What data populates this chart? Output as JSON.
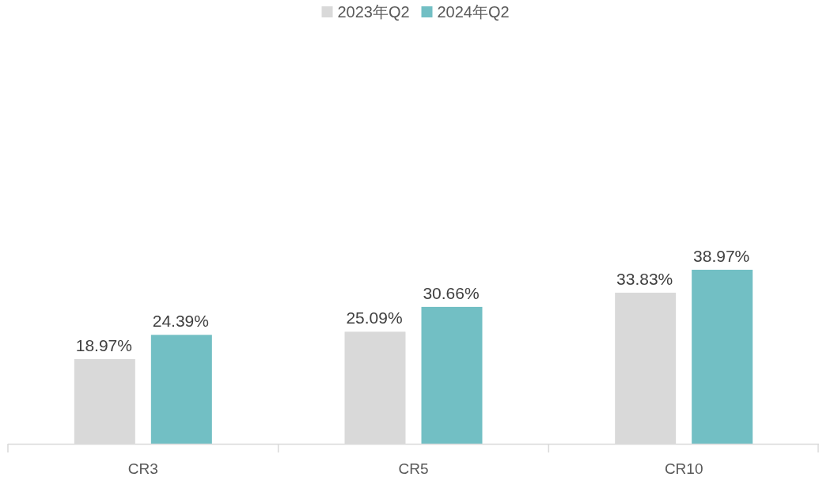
{
  "chart_data": {
    "type": "bar",
    "categories": [
      "CR3",
      "CR5",
      "CR10"
    ],
    "series": [
      {
        "name": "2023年Q2",
        "color": "#d9d9d9",
        "values": [
          18.97,
          25.09,
          33.83
        ],
        "value_labels": [
          "18.97%",
          "25.09%",
          "33.83%"
        ]
      },
      {
        "name": "2024年Q2",
        "color": "#72bfc4",
        "values": [
          24.39,
          30.66,
          38.97
        ],
        "value_labels": [
          "24.39%",
          "30.66%",
          "38.97%"
        ]
      }
    ],
    "legend": "top"
  }
}
